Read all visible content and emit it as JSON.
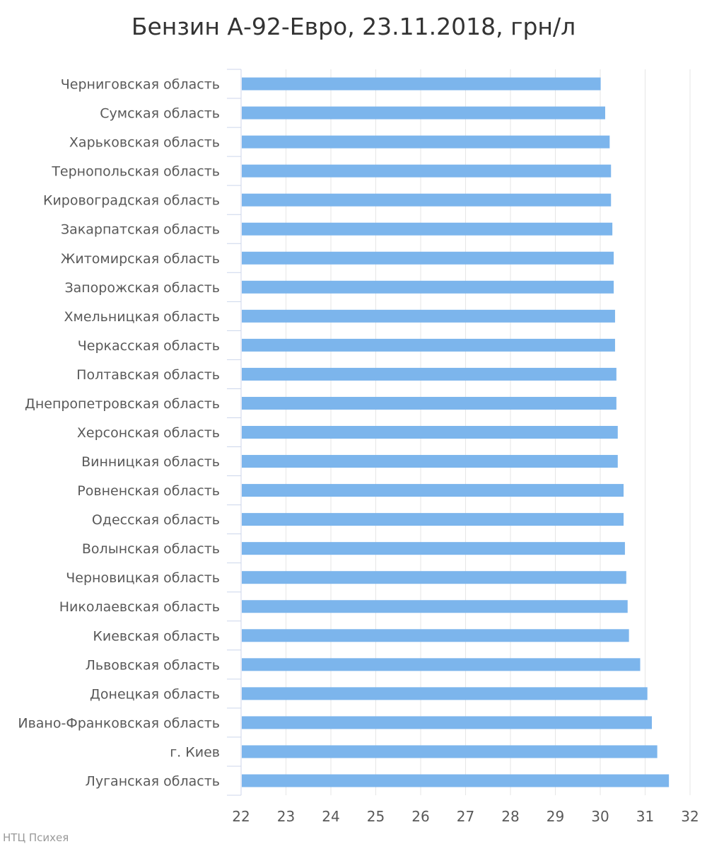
{
  "chart_data": {
    "type": "bar",
    "orientation": "horizontal",
    "title": "Бензин А-92-Евро, 23.11.2018, грн/л",
    "credit": "НТЦ Психея",
    "categories": [
      "Черниговская область",
      "Сумская область",
      "Харьковская область",
      "Тернопольская область",
      "Кировоградская область",
      "Закарпатская область",
      "Житомирская область",
      "Запорожская область",
      "Хмельницкая область",
      "Черкасская область",
      "Полтавская область",
      "Днепропетровская область",
      "Херсонская область",
      "Винницкая область",
      "Ровненская область",
      "Одесская область",
      "Волынская область",
      "Черновицкая область",
      "Николаевская область",
      "Киевская область",
      "Львовская область",
      "Донецкая область",
      "Ивано-Франковская область",
      "г. Киев",
      "Луганская область"
    ],
    "values": [
      30.01,
      30.11,
      30.21,
      30.24,
      30.24,
      30.27,
      30.3,
      30.3,
      30.33,
      30.33,
      30.36,
      30.36,
      30.39,
      30.39,
      30.52,
      30.52,
      30.55,
      30.58,
      30.61,
      30.64,
      30.89,
      31.05,
      31.15,
      31.27,
      31.53
    ],
    "xlim": [
      22,
      32
    ],
    "xticks": [
      "22",
      "23",
      "24",
      "25",
      "26",
      "27",
      "28",
      "29",
      "30",
      "31",
      "32"
    ],
    "grid": true,
    "legend": false,
    "colors": {
      "bar": "#7cb5ec",
      "grid": "#e6e6e6",
      "axis": "#ccd6eb"
    }
  }
}
